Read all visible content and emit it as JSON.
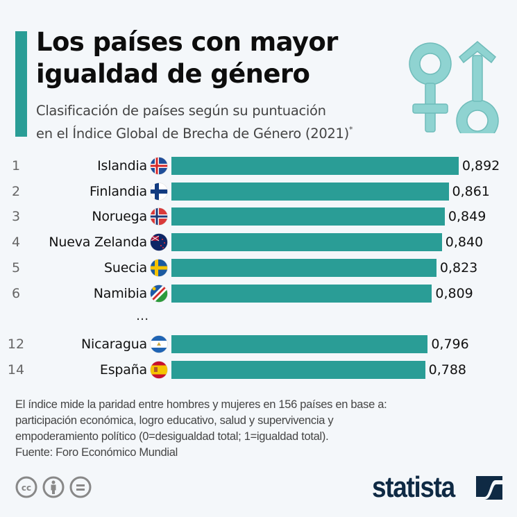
{
  "header": {
    "title_line1": "Los países con mayor",
    "title_line2": "igualdad de género",
    "subtitle_line1": "Clasificación de países según su puntuación",
    "subtitle_line2": "en el Índice Global de Brecha de Género (2021)",
    "subtitle_mark": "*",
    "icon": "gender-symbols-icon"
  },
  "colors": {
    "accent": "#2a9d96",
    "bar": "#2a9d96",
    "icon_fill": "#8fd3d1",
    "brand": "#0f2a44",
    "background": "#f4f7fa"
  },
  "chart_data": {
    "type": "bar",
    "orientation": "horizontal",
    "title": "Los países con mayor igualdad de género",
    "subtitle": "Clasificación de países según su puntuación en el Índice Global de Brecha de Género (2021)*",
    "xlabel": "",
    "ylabel": "",
    "xlim": [
      0,
      1
    ],
    "grid": false,
    "categories": [
      "Islandia",
      "Finlandia",
      "Noruega",
      "Nueva Zelanda",
      "Suecia",
      "Namibia",
      "Nicaragua",
      "España"
    ],
    "ranks": [
      "1",
      "2",
      "3",
      "4",
      "5",
      "6",
      "12",
      "14"
    ],
    "flags": [
      "iceland-flag-icon",
      "finland-flag-icon",
      "norway-flag-icon",
      "new-zealand-flag-icon",
      "sweden-flag-icon",
      "namibia-flag-icon",
      "nicaragua-flag-icon",
      "spain-flag-icon"
    ],
    "values": [
      0.892,
      0.861,
      0.849,
      0.84,
      0.823,
      0.809,
      0.796,
      0.788
    ],
    "value_labels": [
      "0,892",
      "0,861",
      "0,849",
      "0,840",
      "0,823",
      "0,809",
      "0,796",
      "0,788"
    ],
    "gap_after_index": 5,
    "gap_label": "..."
  },
  "footer": {
    "note_line1": "El índice mide la paridad entre hombres y mujeres en 156 países en base a:",
    "note_line2": "participación económica, logro educativo, salud y supervivencia y",
    "note_line3": "empoderamiento político (0=desigualdad total; 1=igualdad total).",
    "source": "Fuente: Foro Económico Mundial",
    "license_icons": [
      "creative-commons-icon",
      "attribution-icon",
      "no-derivatives-icon"
    ],
    "brand": "statista"
  }
}
